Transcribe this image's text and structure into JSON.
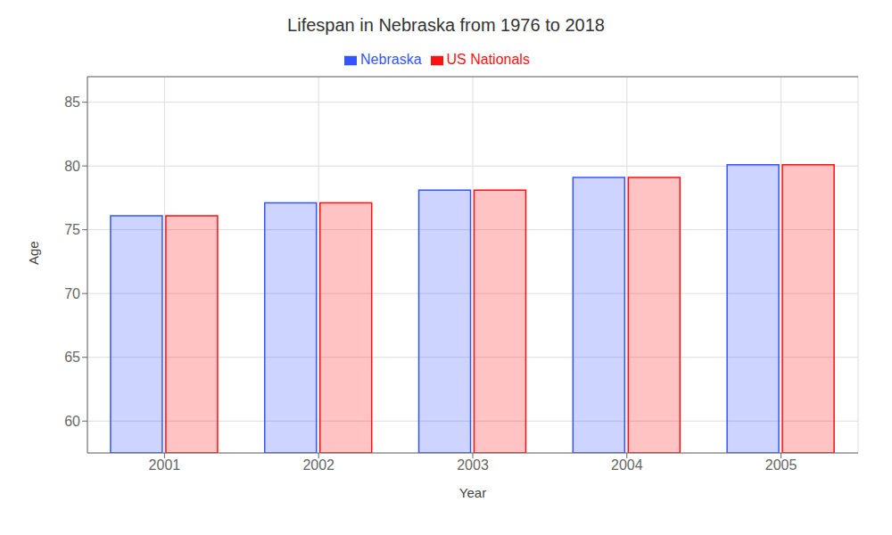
{
  "chart_data": {
    "type": "bar",
    "title": "Lifespan in Nebraska from 1976 to 2018",
    "x_label": "Year",
    "y_label": "Age",
    "categories": [
      "2001",
      "2002",
      "2003",
      "2004",
      "2005"
    ],
    "series": [
      {
        "name": "Nebraska",
        "color": "#3355FF",
        "values": [
          76.1,
          77.1,
          78.1,
          79.1,
          80.1
        ]
      },
      {
        "name": "US Nationals",
        "color": "#FF1111",
        "values": [
          76.1,
          77.1,
          78.1,
          79.1,
          80.1
        ]
      }
    ],
    "ylim": [
      57.5,
      87
    ],
    "yticks": [
      60,
      65,
      70,
      75,
      80,
      85
    ],
    "grid": true,
    "legend": "top"
  }
}
